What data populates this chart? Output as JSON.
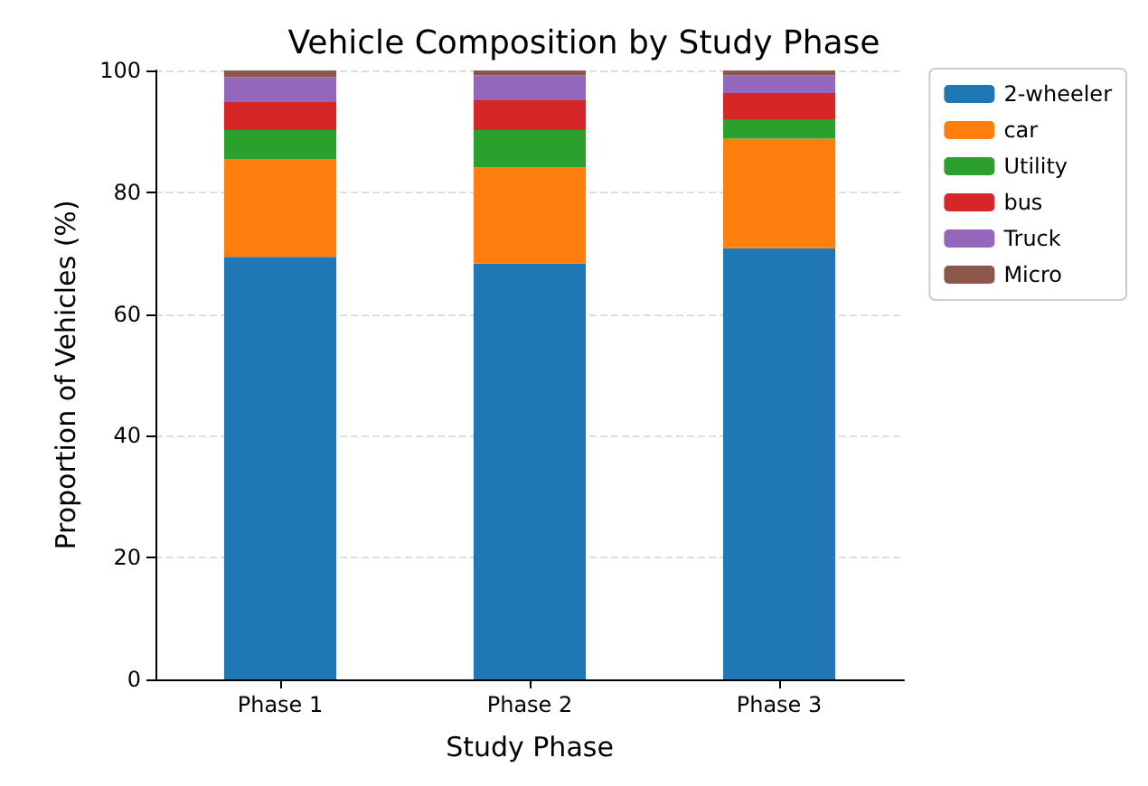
{
  "chart_data": {
    "type": "bar",
    "title": "Vehicle Composition by Study Phase",
    "xlabel": "Study Phase",
    "ylabel": "Proportion of Vehicles (%)",
    "categories": [
      "Phase 1",
      "Phase 2",
      "Phase 3"
    ],
    "stacked": true,
    "ylim": [
      0,
      100
    ],
    "yticks": [
      0,
      20,
      40,
      60,
      80,
      100
    ],
    "grid": "y",
    "legend": "top right",
    "series": [
      {
        "name": "2-wheeler",
        "color": "#1f77b4",
        "values": [
          69.4,
          68.3,
          70.8
        ]
      },
      {
        "name": "car",
        "color": "#ff7f0e",
        "values": [
          16.0,
          15.8,
          18.0
        ]
      },
      {
        "name": "Utility",
        "color": "#2ca02c",
        "values": [
          4.8,
          6.1,
          3.2
        ]
      },
      {
        "name": "bus",
        "color": "#d62728",
        "values": [
          4.6,
          4.9,
          4.3
        ]
      },
      {
        "name": "Truck",
        "color": "#9467bd",
        "values": [
          4.1,
          4.1,
          2.9
        ]
      },
      {
        "name": "Micro",
        "color": "#8c564b",
        "values": [
          1.1,
          0.8,
          0.8
        ]
      }
    ]
  }
}
